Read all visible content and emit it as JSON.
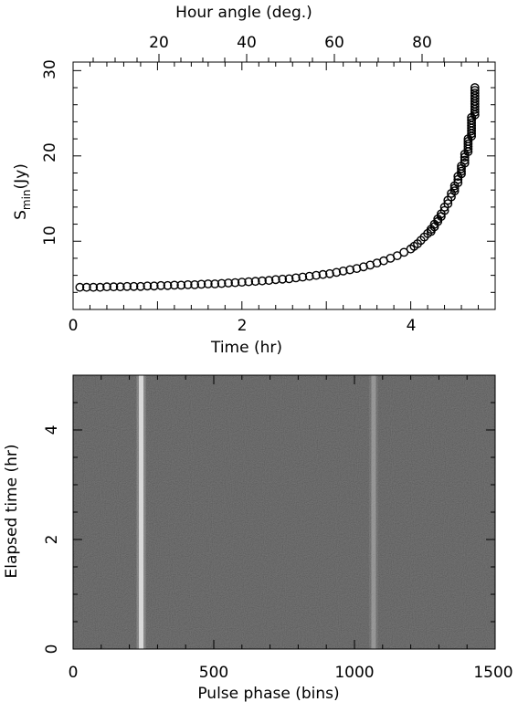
{
  "chart_data": [
    {
      "type": "scatter",
      "x": [
        0.08,
        0.16,
        0.24,
        0.32,
        0.4,
        0.48,
        0.56,
        0.64,
        0.72,
        0.8,
        0.88,
        0.96,
        1.04,
        1.12,
        1.2,
        1.28,
        1.36,
        1.44,
        1.52,
        1.6,
        1.68,
        1.76,
        1.84,
        1.92,
        2.0,
        2.08,
        2.16,
        2.24,
        2.32,
        2.4,
        2.48,
        2.56,
        2.64,
        2.72,
        2.8,
        2.88,
        2.96,
        3.04,
        3.12,
        3.2,
        3.28,
        3.36,
        3.44,
        3.52,
        3.6,
        3.68,
        3.76,
        3.84,
        3.92,
        4.0,
        4.04,
        4.08,
        4.12,
        4.16,
        4.2,
        4.24,
        4.28,
        4.32,
        4.36,
        4.4,
        4.44,
        4.48,
        4.52,
        4.56,
        4.6,
        4.64,
        4.68,
        4.72,
        4.76
      ],
      "y": [
        4.6,
        4.6,
        4.6,
        4.6,
        4.65,
        4.65,
        4.65,
        4.7,
        4.7,
        4.7,
        4.75,
        4.75,
        4.8,
        4.8,
        4.85,
        4.85,
        4.9,
        4.9,
        4.95,
        5.0,
        5.0,
        5.05,
        5.1,
        5.15,
        5.2,
        5.25,
        5.3,
        5.35,
        5.4,
        5.5,
        5.55,
        5.6,
        5.7,
        5.8,
        5.9,
        6.0,
        6.1,
        6.2,
        6.35,
        6.5,
        6.65,
        6.8,
        7.0,
        7.2,
        7.45,
        7.7,
        8.0,
        8.3,
        8.7,
        9.1,
        9.4,
        9.7,
        10.1,
        10.5,
        10.9,
        11.4,
        12.0,
        12.6,
        13.2,
        14.0,
        14.8,
        15.6,
        16.5,
        17.6,
        18.8,
        20.2,
        22.0,
        24.5,
        28.0
      ],
      "xlabel": "Time (hr)",
      "ylabel": "S",
      "ylabel_sub": "min",
      "ylabel_tail": "(Jy)",
      "xlim": [
        0,
        5
      ],
      "ylim": [
        2,
        31
      ],
      "xticks": [
        "0",
        "2",
        "4"
      ],
      "yticks": [
        "10",
        "20",
        "30"
      ],
      "top_axis_label": "Hour angle (deg.)",
      "top_ticks": [
        "20",
        "40",
        "60",
        "80"
      ],
      "marker": "open-circle",
      "grid": false
    },
    {
      "type": "heatmap",
      "xlabel": "Pulse phase (bins)",
      "ylabel": "Elapsed time (hr)",
      "xlim": [
        0,
        1500
      ],
      "ylim": [
        0,
        5
      ],
      "xticks": [
        "0",
        "500",
        "1000",
        "1500"
      ],
      "yticks": [
        "0",
        "2",
        "4"
      ],
      "background_color": "#474747",
      "pulse_color": "#e8e8e8",
      "pulse_center_bins": [
        242,
        1068
      ],
      "pulse_intensity": [
        1.0,
        0.35
      ],
      "colormap": "grayscale"
    }
  ]
}
